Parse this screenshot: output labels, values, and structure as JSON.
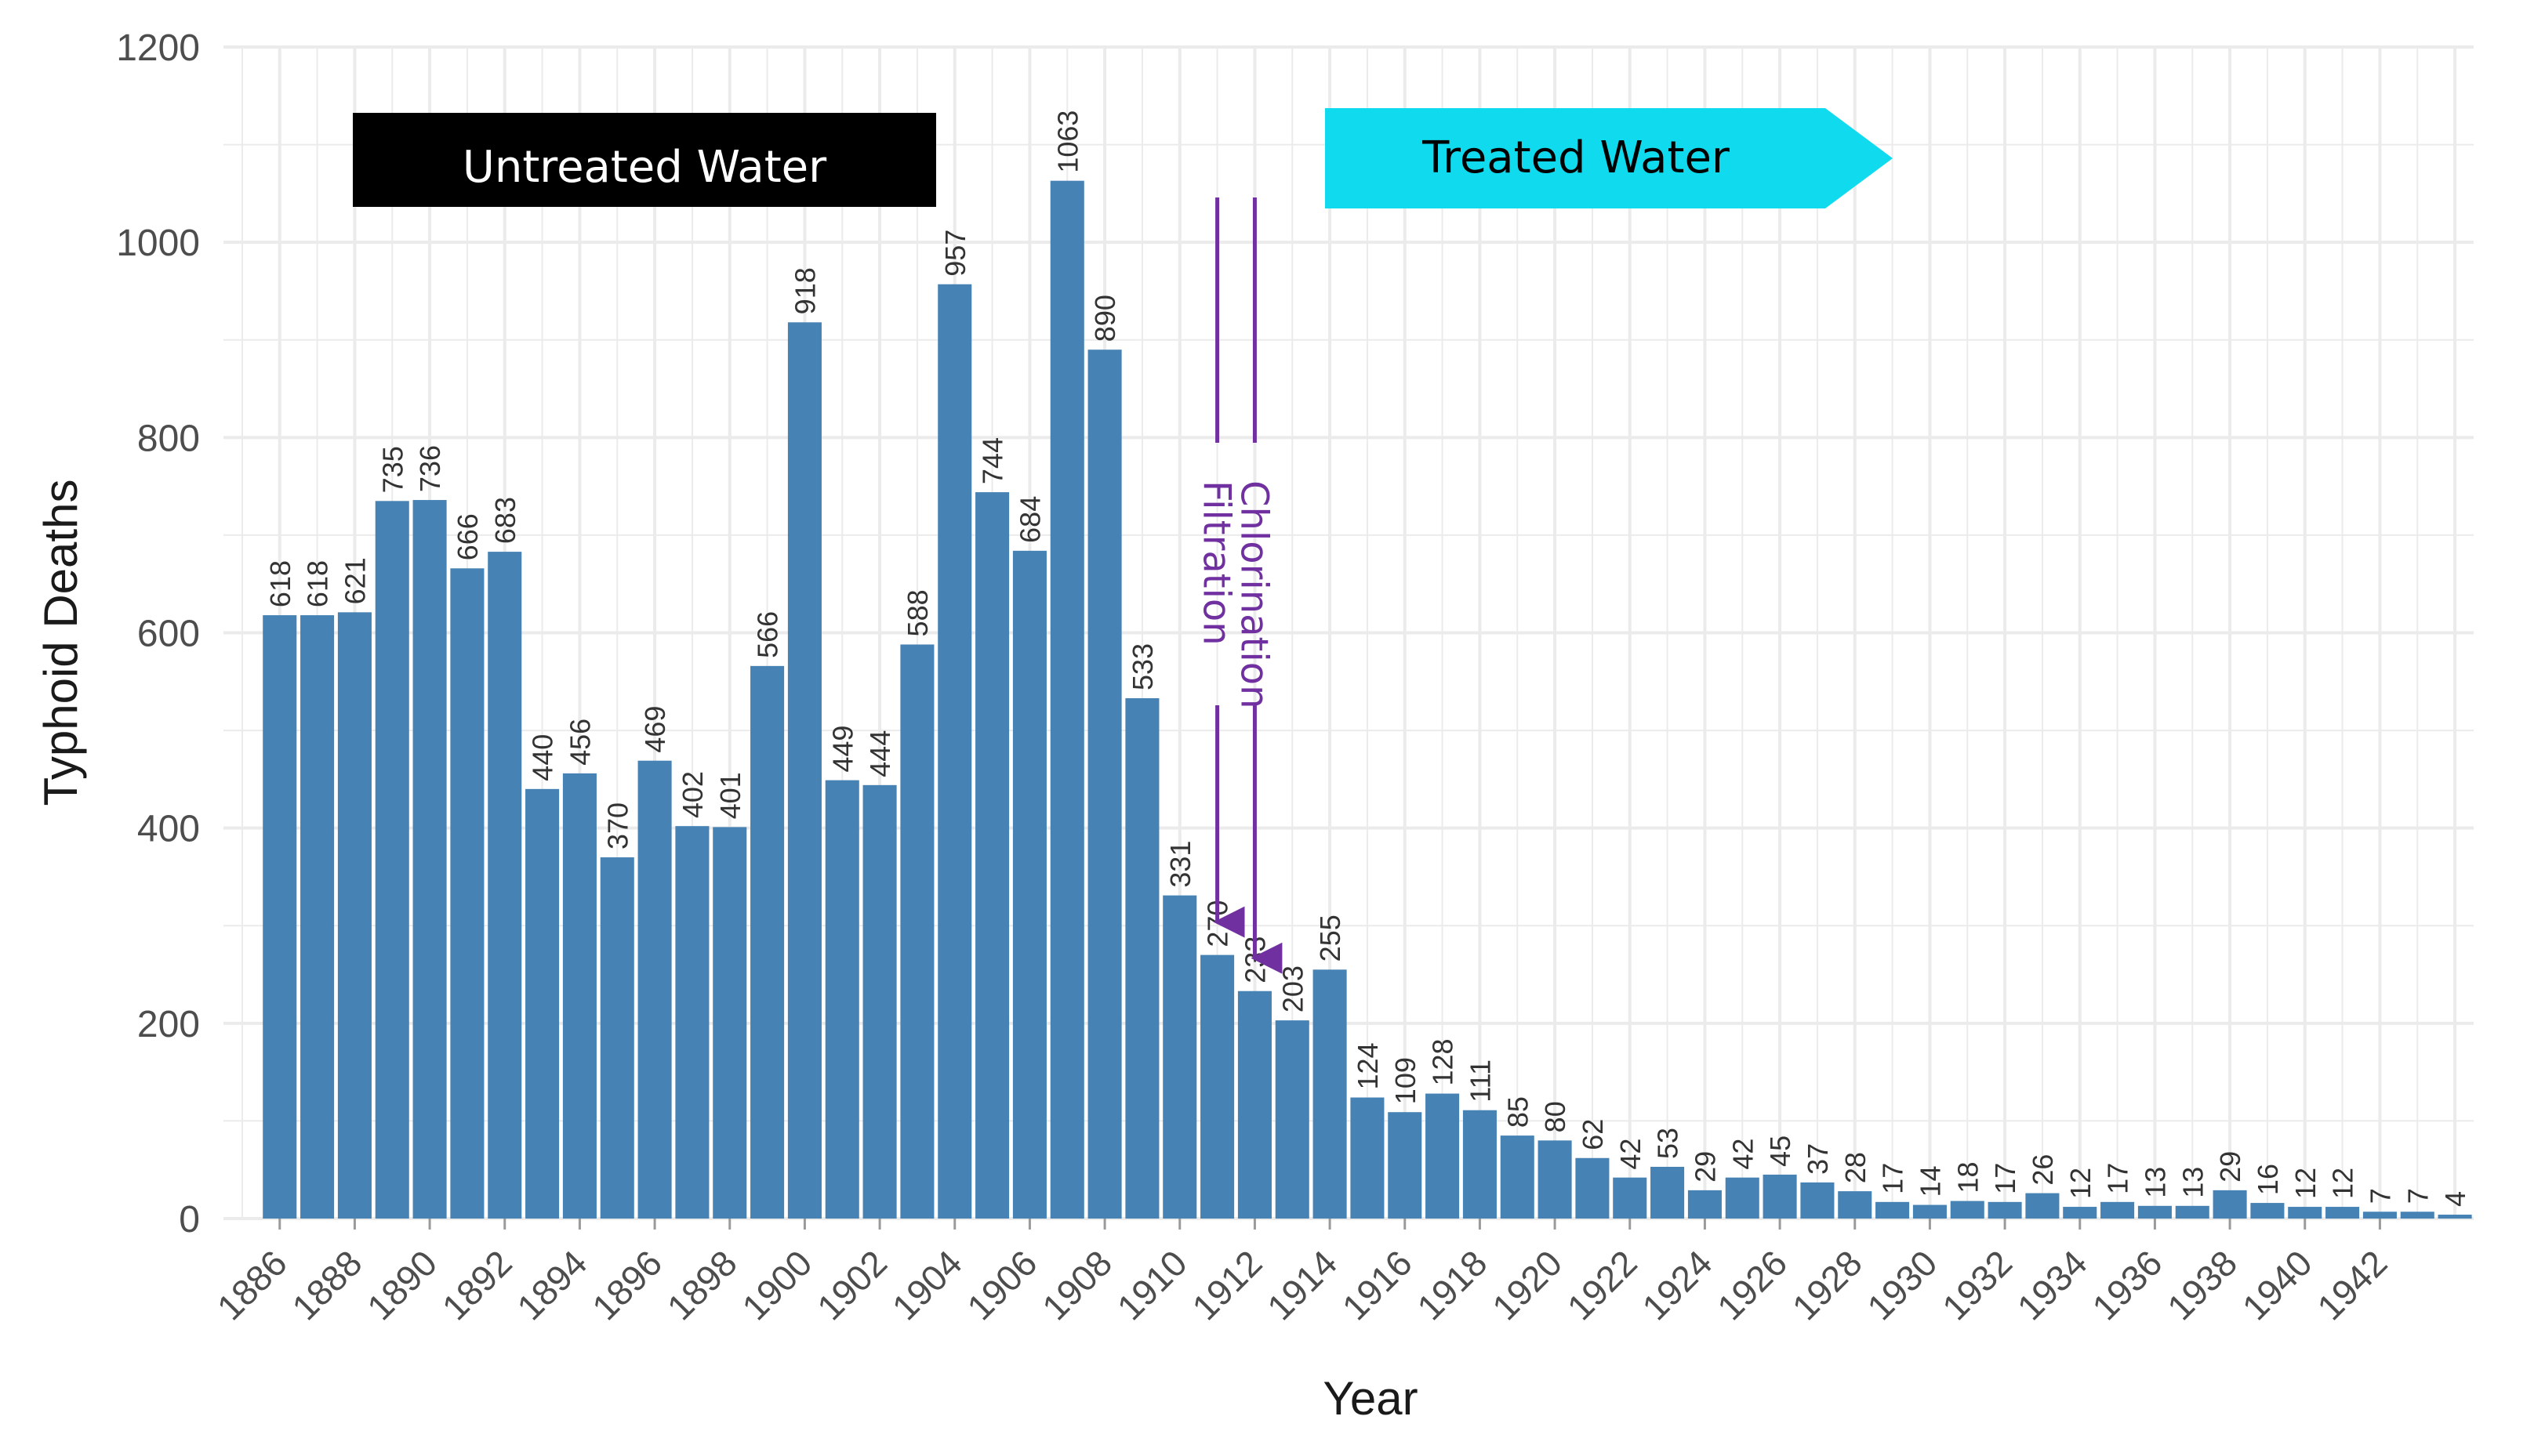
{
  "chart_data": {
    "type": "bar",
    "xlabel": "Year",
    "ylabel": "Typhoid  Deaths",
    "ylim": [
      0,
      1200
    ],
    "yticks": [
      0,
      200,
      400,
      600,
      800,
      1000,
      1200
    ],
    "xlim": [
      1884.5,
      1944.5
    ],
    "x_tick_labels": [
      "1886",
      "1888",
      "1890",
      "1892",
      "1894",
      "1896",
      "1898",
      "1900",
      "1902",
      "1904",
      "1906",
      "1908",
      "1910",
      "1912",
      "1914",
      "1916",
      "1918",
      "1920",
      "1922",
      "1924",
      "1926",
      "1928",
      "1930",
      "1932",
      "1934",
      "1936",
      "1938",
      "1940",
      "1942"
    ],
    "x": [
      1886,
      1887,
      1888,
      1889,
      1890,
      1891,
      1892,
      1893,
      1894,
      1895,
      1896,
      1897,
      1898,
      1899,
      1900,
      1901,
      1902,
      1903,
      1904,
      1905,
      1906,
      1907,
      1908,
      1909,
      1910,
      1911,
      1912,
      1913,
      1914,
      1915,
      1916,
      1917,
      1918,
      1919,
      1920,
      1921,
      1922,
      1923,
      1924,
      1925,
      1926,
      1927,
      1928,
      1929,
      1930,
      1931,
      1932,
      1933,
      1934,
      1935,
      1936,
      1937,
      1938,
      1939,
      1940,
      1941,
      1942,
      1943,
      1944
    ],
    "values": [
      618,
      618,
      621,
      735,
      736,
      666,
      683,
      440,
      456,
      370,
      469,
      402,
      401,
      566,
      918,
      449,
      444,
      588,
      957,
      744,
      684,
      1063,
      890,
      533,
      331,
      270,
      233,
      203,
      255,
      124,
      109,
      128,
      111,
      85,
      80,
      62,
      42,
      53,
      29,
      42,
      45,
      37,
      28,
      17,
      14,
      18,
      17,
      26,
      12,
      17,
      13,
      13,
      29,
      16,
      12,
      12,
      7,
      7,
      4
    ],
    "grid": true,
    "legend": "none",
    "colors": {
      "bar": "#4682b4",
      "grid": "#ebebeb",
      "untreated_banner": "#000000",
      "treated_banner": "#10dbee",
      "event": "#7030a0"
    },
    "annotations": {
      "untreated": "Untreated Water",
      "treated": "Treated Water",
      "events": [
        {
          "label": "Filtration",
          "year": 1911
        },
        {
          "label": "Chlorination",
          "year": 1912
        }
      ]
    }
  }
}
